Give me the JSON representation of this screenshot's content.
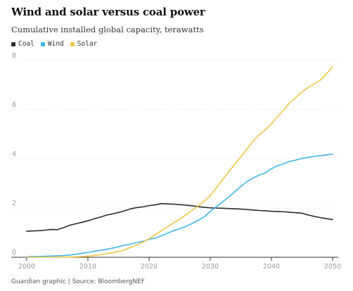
{
  "header": {
    "title": "Wind and solar versus coal power",
    "subtitle": "Cumulative installed global capacity, terawatts"
  },
  "footer": {
    "source": "Guardian graphic | Source: BloombergNEF"
  },
  "colors": {
    "coal": "#2b2b2b",
    "wind": "#3fb6e8",
    "solar": "#f0c648",
    "grid": "#dcdcdc",
    "axis": "#333333"
  },
  "chart_data": {
    "type": "line",
    "title": "Wind and solar versus coal power",
    "subtitle": "Cumulative installed global capacity, terawatts",
    "xlabel": "",
    "ylabel": "",
    "xlim": [
      2000,
      2050
    ],
    "ylim": [
      0,
      8
    ],
    "xticks": [
      2000,
      2010,
      2020,
      2030,
      2040,
      2050
    ],
    "yticks": [
      0,
      2,
      4,
      6,
      8
    ],
    "grid": true,
    "legend_position": "top-left",
    "series": [
      {
        "name": "Coal",
        "color": "#2b2b2b",
        "x": [
          2000,
          2001,
          2002,
          2003,
          2004,
          2005,
          2006,
          2007,
          2008,
          2009,
          2010,
          2011,
          2012,
          2013,
          2014,
          2015,
          2016,
          2017,
          2018,
          2019,
          2020,
          2021,
          2022,
          2023,
          2024,
          2025,
          2026,
          2027,
          2028,
          2029,
          2030,
          2031,
          2032,
          2033,
          2034,
          2035,
          2036,
          2037,
          2038,
          2039,
          2040,
          2041,
          2042,
          2043,
          2044,
          2045,
          2046,
          2047,
          2048,
          2049,
          2050
        ],
        "values": [
          1.06,
          1.07,
          1.08,
          1.1,
          1.13,
          1.12,
          1.2,
          1.3,
          1.36,
          1.42,
          1.48,
          1.56,
          1.63,
          1.71,
          1.76,
          1.82,
          1.89,
          1.97,
          2.02,
          2.05,
          2.1,
          2.13,
          2.18,
          2.17,
          2.16,
          2.14,
          2.12,
          2.09,
          2.06,
          2.03,
          2.01,
          2.0,
          1.99,
          1.98,
          1.97,
          1.96,
          1.94,
          1.92,
          1.9,
          1.89,
          1.87,
          1.86,
          1.85,
          1.83,
          1.81,
          1.79,
          1.72,
          1.66,
          1.61,
          1.57,
          1.53
        ]
      },
      {
        "name": "Wind",
        "color": "#3fb6e8",
        "x": [
          2000,
          2001,
          2002,
          2003,
          2004,
          2005,
          2006,
          2007,
          2008,
          2009,
          2010,
          2011,
          2012,
          2013,
          2014,
          2015,
          2016,
          2017,
          2018,
          2019,
          2020,
          2021,
          2022,
          2023,
          2024,
          2025,
          2026,
          2027,
          2028,
          2029,
          2030,
          2031,
          2032,
          2033,
          2034,
          2035,
          2036,
          2037,
          2038,
          2039,
          2040,
          2041,
          2042,
          2043,
          2044,
          2045,
          2046,
          2047,
          2048,
          2049,
          2050
        ],
        "values": [
          0.02,
          0.03,
          0.03,
          0.04,
          0.05,
          0.06,
          0.07,
          0.09,
          0.12,
          0.16,
          0.2,
          0.24,
          0.28,
          0.32,
          0.37,
          0.43,
          0.49,
          0.54,
          0.6,
          0.65,
          0.73,
          0.78,
          0.87,
          0.98,
          1.08,
          1.16,
          1.25,
          1.37,
          1.5,
          1.64,
          1.86,
          2.06,
          2.25,
          2.45,
          2.66,
          2.88,
          3.08,
          3.22,
          3.34,
          3.43,
          3.6,
          3.72,
          3.8,
          3.9,
          3.95,
          4.02,
          4.06,
          4.1,
          4.13,
          4.16,
          4.2
        ]
      },
      {
        "name": "Solar",
        "color": "#f0c648",
        "x": [
          2000,
          2001,
          2002,
          2003,
          2004,
          2005,
          2006,
          2007,
          2008,
          2009,
          2010,
          2011,
          2012,
          2013,
          2014,
          2015,
          2016,
          2017,
          2018,
          2019,
          2020,
          2021,
          2022,
          2023,
          2024,
          2025,
          2026,
          2027,
          2028,
          2029,
          2030,
          2031,
          2032,
          2033,
          2034,
          2035,
          2036,
          2037,
          2038,
          2039,
          2040,
          2041,
          2042,
          2043,
          2044,
          2045,
          2046,
          2047,
          2048,
          2049,
          2050
        ],
        "values": [
          0.0,
          0.0,
          0.0,
          0.0,
          0.0,
          0.0,
          0.01,
          0.01,
          0.02,
          0.03,
          0.04,
          0.07,
          0.1,
          0.14,
          0.18,
          0.23,
          0.3,
          0.4,
          0.5,
          0.62,
          0.75,
          0.92,
          1.08,
          1.24,
          1.4,
          1.55,
          1.72,
          1.9,
          2.08,
          2.27,
          2.5,
          2.82,
          3.15,
          3.47,
          3.78,
          4.08,
          4.4,
          4.72,
          4.98,
          5.18,
          5.42,
          5.72,
          5.98,
          6.28,
          6.5,
          6.72,
          6.9,
          7.05,
          7.2,
          7.45,
          7.75
        ]
      }
    ]
  }
}
